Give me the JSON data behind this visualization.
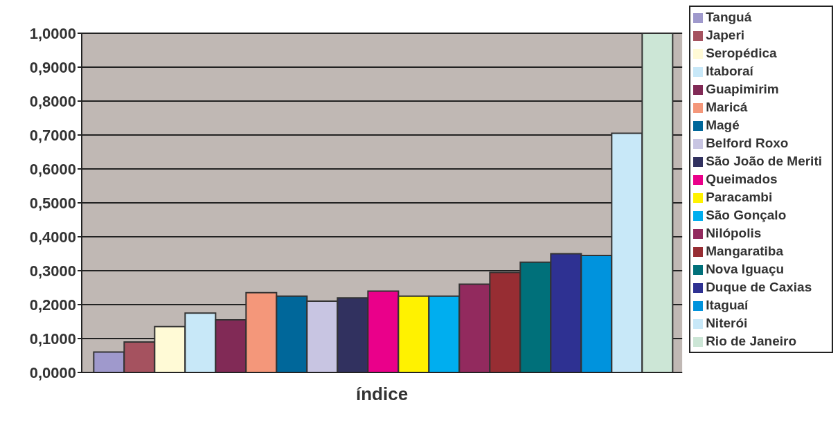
{
  "chart_data": {
    "type": "bar",
    "categories": [
      "índice"
    ],
    "series": [
      {
        "name": "Tanguá",
        "color": "#9f99cc",
        "values": [
          0.06
        ]
      },
      {
        "name": "Japeri",
        "color": "#a5525f",
        "values": [
          0.09
        ]
      },
      {
        "name": "Seropédica",
        "color": "#fffad6",
        "values": [
          0.135
        ]
      },
      {
        "name": "Itaboraí",
        "color": "#c8e8f8",
        "values": [
          0.175
        ]
      },
      {
        "name": "Guapimirim",
        "color": "#812a56",
        "values": [
          0.155
        ]
      },
      {
        "name": "Maricá",
        "color": "#f4977a",
        "values": [
          0.235
        ]
      },
      {
        "name": "Magé",
        "color": "#00679a",
        "values": [
          0.225
        ]
      },
      {
        "name": "Belford Roxo",
        "color": "#c8c5e2",
        "values": [
          0.21
        ]
      },
      {
        "name": "São João de Meriti",
        "color": "#31315f",
        "values": [
          0.22
        ]
      },
      {
        "name": "Queimados",
        "color": "#ea008a",
        "values": [
          0.24
        ]
      },
      {
        "name": "Paracambi",
        "color": "#fff200",
        "values": [
          0.225
        ]
      },
      {
        "name": "São Gonçalo",
        "color": "#00aeef",
        "values": [
          0.225
        ]
      },
      {
        "name": "Nilópolis",
        "color": "#922a5e",
        "values": [
          0.26
        ]
      },
      {
        "name": "Mangaratiba",
        "color": "#972d33",
        "values": [
          0.295
        ]
      },
      {
        "name": "Nova Iguaçu",
        "color": "#00707a",
        "values": [
          0.325
        ]
      },
      {
        "name": "Duque de Caxias",
        "color": "#2e3192",
        "values": [
          0.35
        ]
      },
      {
        "name": "Itaguaí",
        "color": "#0093dd",
        "values": [
          0.345
        ]
      },
      {
        "name": "Niterói",
        "color": "#c8e8f8",
        "values": [
          0.705
        ]
      },
      {
        "name": "Rio de Janeiro",
        "color": "#cce6d6",
        "values": [
          1.0
        ]
      }
    ],
    "ylim": [
      0,
      1
    ],
    "yticks": [
      {
        "value": 0,
        "label": "0,0000"
      },
      {
        "value": 0.1,
        "label": "0,1000"
      },
      {
        "value": 0.2,
        "label": "0,2000"
      },
      {
        "value": 0.3,
        "label": "0,3000"
      },
      {
        "value": 0.4,
        "label": "0,4000"
      },
      {
        "value": 0.5,
        "label": "0,5000"
      },
      {
        "value": 0.6,
        "label": "0,6000"
      },
      {
        "value": 0.7,
        "label": "0,7000"
      },
      {
        "value": 0.8,
        "label": "0,8000"
      },
      {
        "value": 0.9,
        "label": "0,9000"
      },
      {
        "value": 1,
        "label": "1,0000"
      }
    ],
    "grid": "y",
    "legend": "right"
  }
}
